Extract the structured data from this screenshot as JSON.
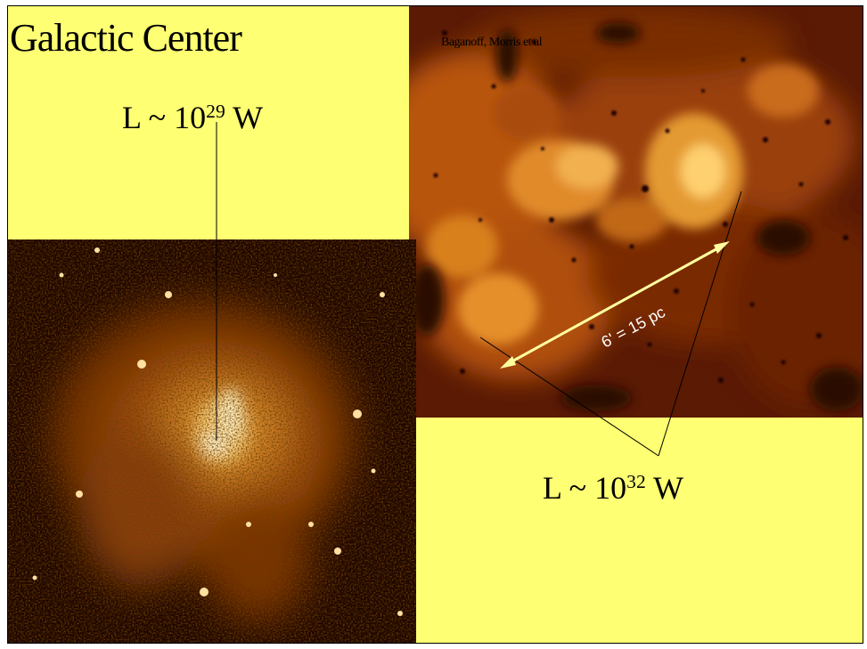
{
  "slide": {
    "title": "Galactic Center",
    "credit": "Baganoff, Morris et al",
    "inner_luminosity": {
      "prefix": "L  ~ 10",
      "exponent": "29",
      "unit": " W"
    },
    "outer_luminosity": {
      "prefix": "L  ~ 10",
      "exponent": "32",
      "unit": " W"
    },
    "scale_bar_label": "6' = 15 pc"
  },
  "images": {
    "wide_field": {
      "name": "x-ray-wide-field-image"
    },
    "zoom_field": {
      "name": "x-ray-zoomed-core-image"
    }
  },
  "colors": {
    "panel_background": "#ffff73",
    "scale_bar": "#ffffa0",
    "pointer_lines": "#000000"
  }
}
